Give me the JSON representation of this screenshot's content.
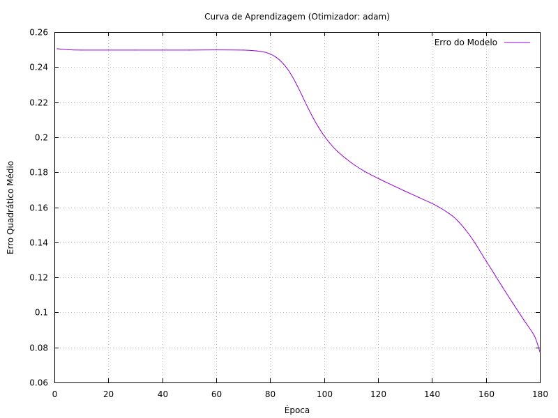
{
  "chart_data": {
    "type": "line",
    "title": "Curva de Aprendizagem (Otimizador: adam)",
    "xlabel": "Época",
    "ylabel": "Erro Quadrático Médio",
    "xlim": [
      0,
      180
    ],
    "ylim": [
      0.06,
      0.26
    ],
    "x_ticks": [
      0,
      20,
      40,
      60,
      80,
      100,
      120,
      140,
      160,
      180
    ],
    "x_tick_labels": [
      "0",
      "20",
      "40",
      "60",
      "80",
      "100",
      "120",
      "140",
      "160",
      "180"
    ],
    "y_ticks": [
      0.06,
      0.08,
      0.1,
      0.12,
      0.14,
      0.16,
      0.18,
      0.2,
      0.22,
      0.24,
      0.26
    ],
    "y_tick_labels": [
      "0.06",
      "0.08",
      "0.1",
      "0.12",
      "0.14",
      "0.16",
      "0.18",
      "0.2",
      "0.22",
      "0.24",
      "0.26"
    ],
    "grid": true,
    "legend_position": "top-right",
    "series": [
      {
        "name": "Erro do Modelo",
        "color": "#9400d3",
        "x": [
          1,
          5,
          10,
          20,
          30,
          40,
          50,
          60,
          70,
          75,
          78,
          80,
          82,
          84,
          86,
          88,
          90,
          92,
          94,
          96,
          98,
          100,
          102,
          105,
          110,
          115,
          120,
          125,
          130,
          135,
          140,
          143,
          146,
          148,
          150,
          152,
          154,
          156,
          158,
          160,
          163,
          166,
          170,
          174,
          178,
          180
        ],
        "y": [
          0.2505,
          0.2499,
          0.2497,
          0.2497,
          0.2497,
          0.2497,
          0.2497,
          0.2498,
          0.2497,
          0.2492,
          0.2485,
          0.2475,
          0.2458,
          0.2433,
          0.2398,
          0.2352,
          0.2295,
          0.2232,
          0.2168,
          0.2108,
          0.2055,
          0.2008,
          0.1968,
          0.1918,
          0.1855,
          0.1805,
          0.1765,
          0.1728,
          0.1692,
          0.1657,
          0.1622,
          0.1597,
          0.1568,
          0.1545,
          0.1515,
          0.148,
          0.144,
          0.1395,
          0.1345,
          0.1295,
          0.1222,
          0.1148,
          0.1052,
          0.0958,
          0.0865,
          0.0775
        ]
      }
    ]
  }
}
